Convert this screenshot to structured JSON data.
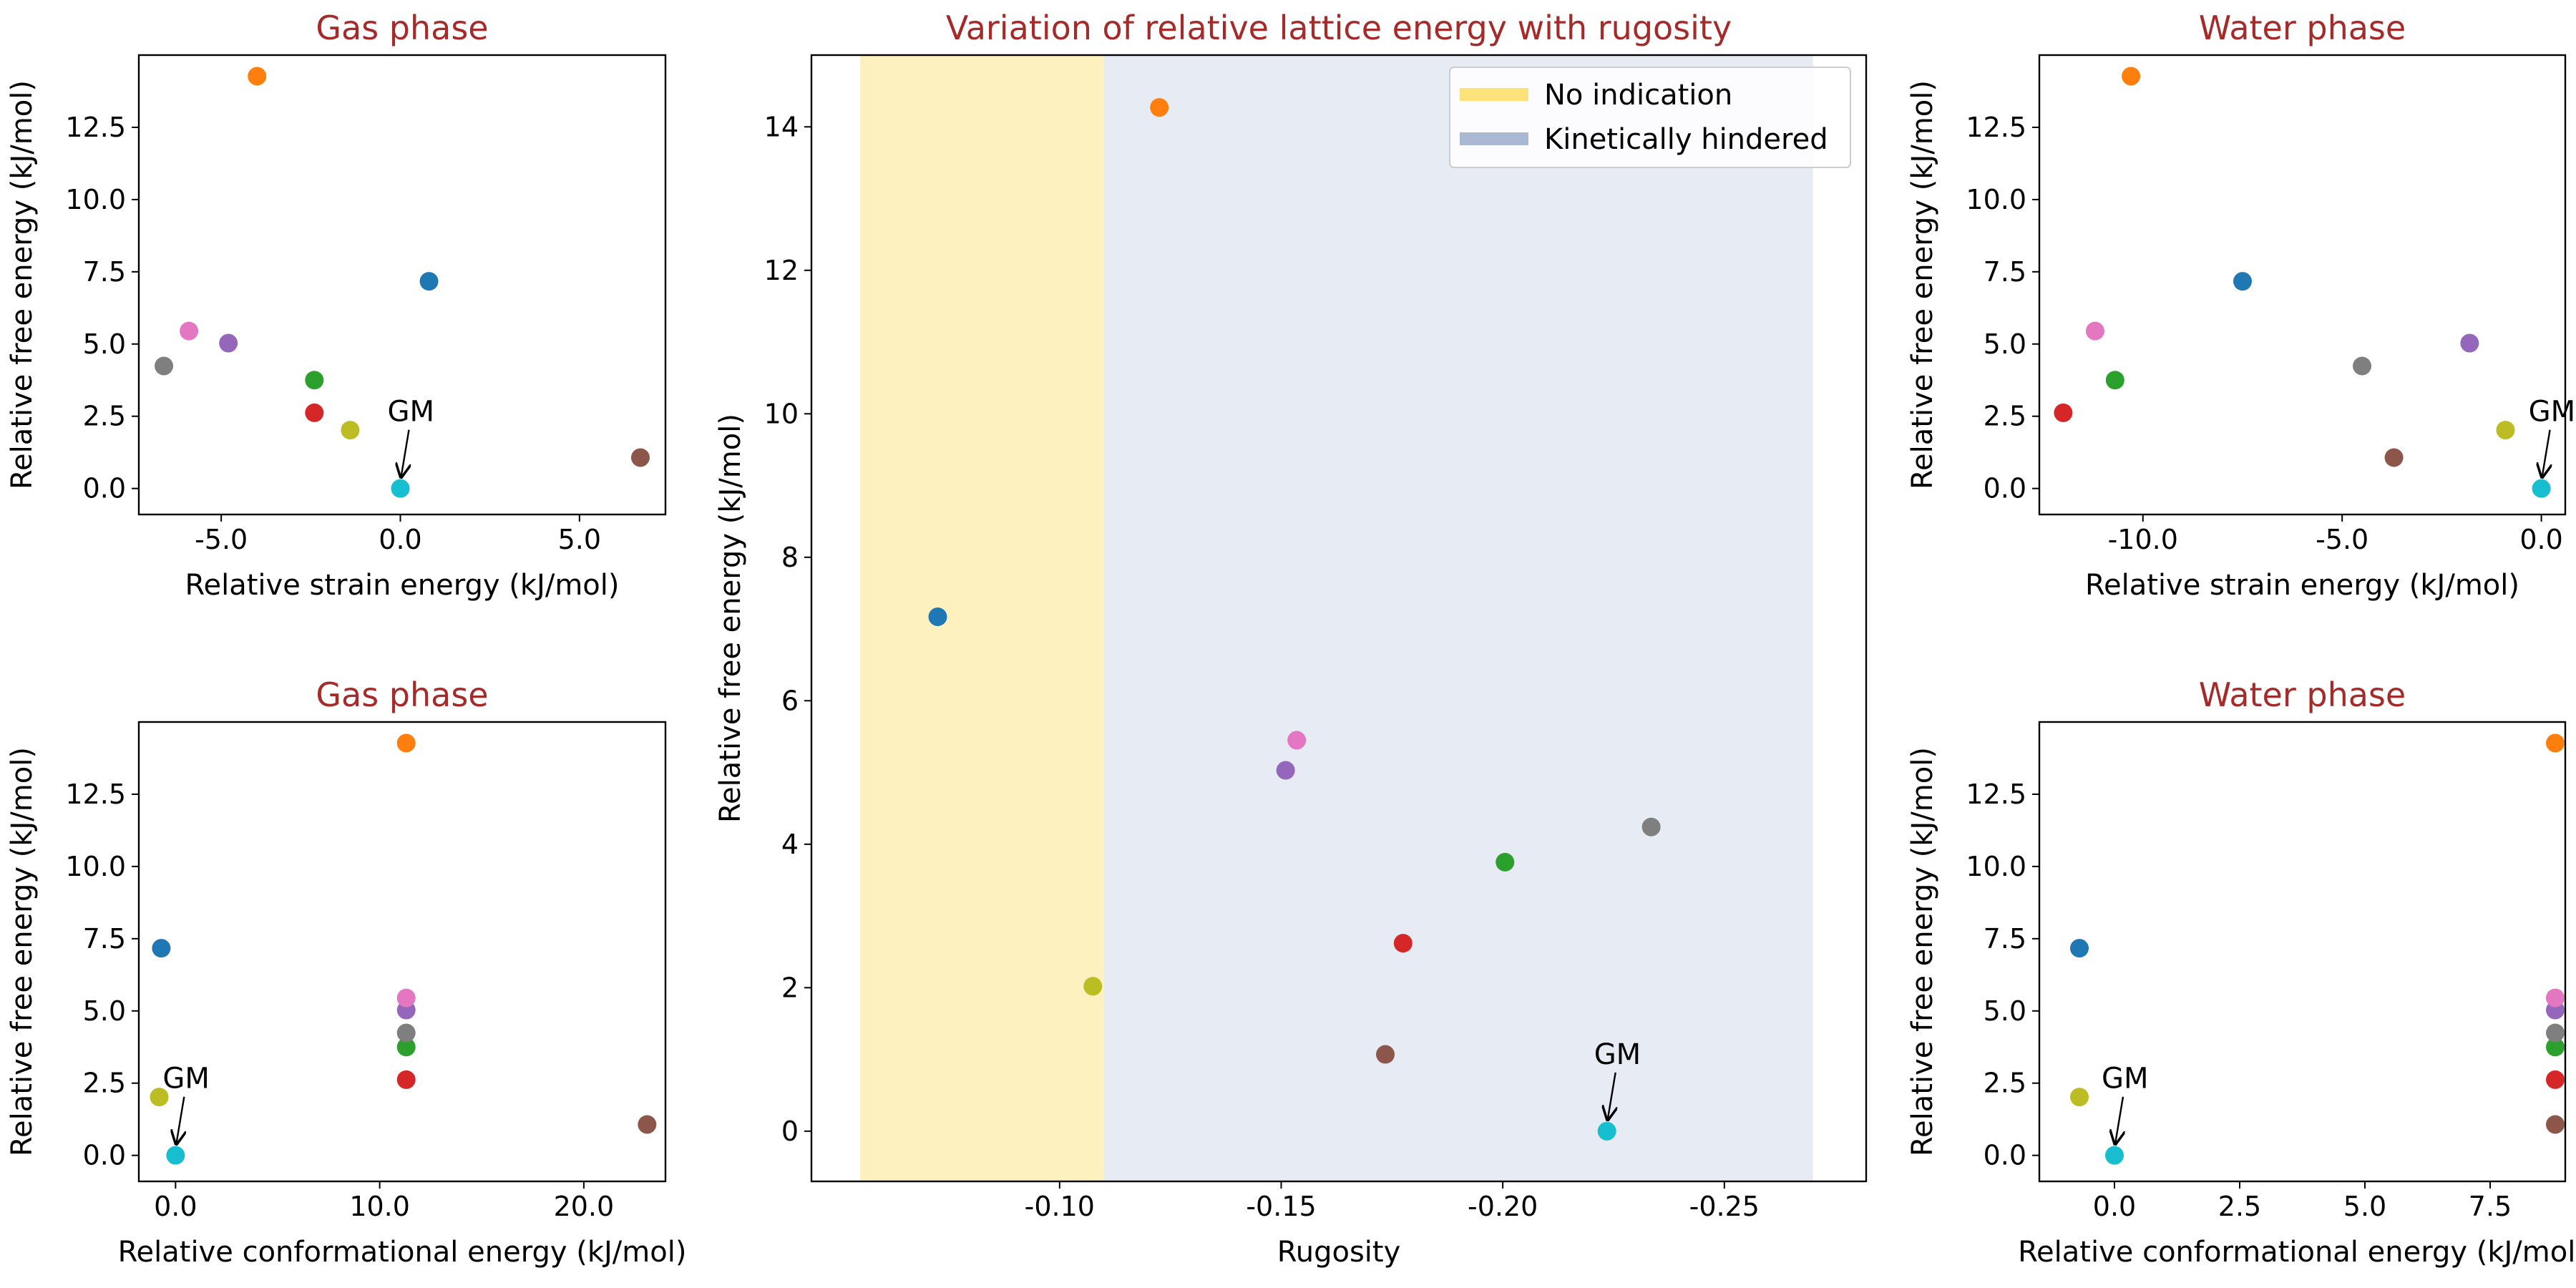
{
  "colors": {
    "title": "#a52a2a",
    "no_indication_region": "#fdf1c0",
    "kinetically_hindered_region": "#e7ebf4",
    "no_indication_legend": "#fde27a",
    "kinetically_hindered_legend": "#a9b8d3"
  },
  "chart_data": [
    {
      "id": "gas-strain",
      "type": "scatter",
      "title": "Gas phase",
      "xlabel": "Relative strain energy (kJ/mol)",
      "ylabel": "Relative free energy (kJ/mol)",
      "xlim": [
        -7.3,
        7.4
      ],
      "ylim": [
        -0.9,
        15.0
      ],
      "xticks": [
        -5,
        0,
        5
      ],
      "xtick_labels": [
        "-5.0",
        "0.0",
        "5.0"
      ],
      "yticks": [
        0,
        2.5,
        5,
        7.5,
        10,
        12.5
      ],
      "ytick_labels": [
        "0.0",
        "2.5",
        "5.0",
        "7.5",
        "10.0",
        "12.5"
      ],
      "points": [
        {
          "x": 0.8,
          "y": 7.17,
          "color": "#1f77b4"
        },
        {
          "x": -4.0,
          "y": 14.27,
          "color": "#ff7f0e"
        },
        {
          "x": -2.4,
          "y": 3.75,
          "color": "#2ca02c"
        },
        {
          "x": -2.4,
          "y": 2.62,
          "color": "#d62728"
        },
        {
          "x": -4.8,
          "y": 5.03,
          "color": "#9467bd"
        },
        {
          "x": 6.7,
          "y": 1.07,
          "color": "#8c564b"
        },
        {
          "x": -5.9,
          "y": 5.45,
          "color": "#e377c2"
        },
        {
          "x": -6.6,
          "y": 4.24,
          "color": "#7f7f7f"
        },
        {
          "x": -1.4,
          "y": 2.02,
          "color": "#bcbd22"
        },
        {
          "x": 0.0,
          "y": 0.0,
          "color": "#17becf"
        }
      ],
      "annotation": {
        "text": "GM",
        "x": 0.0,
        "y": 0.0
      }
    },
    {
      "id": "gas-conformational",
      "type": "scatter",
      "title": "Gas phase",
      "xlabel": "Relative conformational energy (kJ/mol)",
      "ylabel": "Relative free energy (kJ/mol)",
      "xlim": [
        -1.8,
        24.0
      ],
      "ylim": [
        -0.9,
        15.0
      ],
      "xticks": [
        0,
        10,
        20
      ],
      "xtick_labels": [
        "0.0",
        "10.0",
        "20.0"
      ],
      "yticks": [
        0,
        2.5,
        5,
        7.5,
        10,
        12.5
      ],
      "ytick_labels": [
        "0.0",
        "2.5",
        "5.0",
        "7.5",
        "10.0",
        "12.5"
      ],
      "points": [
        {
          "x": -0.7,
          "y": 7.17,
          "color": "#1f77b4"
        },
        {
          "x": 11.3,
          "y": 14.27,
          "color": "#ff7f0e"
        },
        {
          "x": 11.3,
          "y": 3.75,
          "color": "#2ca02c"
        },
        {
          "x": 11.3,
          "y": 2.62,
          "color": "#d62728"
        },
        {
          "x": 11.3,
          "y": 5.03,
          "color": "#9467bd"
        },
        {
          "x": 23.1,
          "y": 1.07,
          "color": "#8c564b"
        },
        {
          "x": 11.3,
          "y": 5.45,
          "color": "#e377c2"
        },
        {
          "x": 11.3,
          "y": 4.24,
          "color": "#7f7f7f"
        },
        {
          "x": -0.8,
          "y": 2.02,
          "color": "#bcbd22"
        },
        {
          "x": 0.0,
          "y": 0.0,
          "color": "#17becf"
        }
      ],
      "annotation": {
        "text": "GM",
        "x": 0.0,
        "y": 0.0
      }
    },
    {
      "id": "rugosity",
      "type": "scatter",
      "title": "Variation of relative lattice energy with rugosity",
      "xlabel": "Rugosity",
      "ylabel": "Relative free energy (kJ/mol)",
      "xlim": [
        -0.044,
        -0.282
      ],
      "ylim": [
        -0.7,
        15.0
      ],
      "xticks": [
        -0.1,
        -0.15,
        -0.2,
        -0.25
      ],
      "xtick_labels": [
        "-0.10",
        "-0.15",
        "-0.20",
        "-0.25"
      ],
      "yticks": [
        0,
        2,
        4,
        6,
        8,
        10,
        12,
        14
      ],
      "ytick_labels": [
        "0",
        "2",
        "4",
        "6",
        "8",
        "10",
        "12",
        "14"
      ],
      "regions": [
        {
          "label": "No indication",
          "from": -0.055,
          "to": -0.11,
          "color": "#fdf1c0"
        },
        {
          "label": "Kinetically hindered",
          "from": -0.11,
          "to": -0.27,
          "color": "#e7ebf4"
        }
      ],
      "legend": {
        "placement": "upper right",
        "entries": [
          {
            "label": "No indication",
            "color": "#fde27a"
          },
          {
            "label": "Kinetically hindered",
            "color": "#a9b8d3"
          }
        ]
      },
      "points": [
        {
          "x": -0.0725,
          "y": 7.17,
          "color": "#1f77b4"
        },
        {
          "x": -0.1225,
          "y": 14.27,
          "color": "#ff7f0e"
        },
        {
          "x": -0.2005,
          "y": 3.75,
          "color": "#2ca02c"
        },
        {
          "x": -0.1775,
          "y": 2.62,
          "color": "#d62728"
        },
        {
          "x": -0.151,
          "y": 5.03,
          "color": "#9467bd"
        },
        {
          "x": -0.1735,
          "y": 1.07,
          "color": "#8c564b"
        },
        {
          "x": -0.1535,
          "y": 5.45,
          "color": "#e377c2"
        },
        {
          "x": -0.2335,
          "y": 4.24,
          "color": "#7f7f7f"
        },
        {
          "x": -0.1075,
          "y": 2.02,
          "color": "#bcbd22"
        },
        {
          "x": -0.2235,
          "y": 0.0,
          "color": "#17becf"
        }
      ],
      "annotation": {
        "text": "GM",
        "x": -0.2235,
        "y": 0.0
      }
    },
    {
      "id": "water-strain",
      "type": "scatter",
      "title": "Water phase",
      "xlabel": "Relative strain energy (kJ/mol)",
      "ylabel": "Relative free energy (kJ/mol)",
      "xlim": [
        -12.6,
        0.6
      ],
      "ylim": [
        -0.9,
        15.0
      ],
      "xticks": [
        -10,
        -5,
        0
      ],
      "xtick_labels": [
        "-10.0",
        "-5.0",
        "0.0"
      ],
      "yticks": [
        0,
        2.5,
        5,
        7.5,
        10,
        12.5
      ],
      "ytick_labels": [
        "0.0",
        "2.5",
        "5.0",
        "7.5",
        "10.0",
        "12.5"
      ],
      "points": [
        {
          "x": -7.5,
          "y": 7.17,
          "color": "#1f77b4"
        },
        {
          "x": -10.3,
          "y": 14.27,
          "color": "#ff7f0e"
        },
        {
          "x": -10.7,
          "y": 3.75,
          "color": "#2ca02c"
        },
        {
          "x": -12.0,
          "y": 2.62,
          "color": "#d62728"
        },
        {
          "x": -1.8,
          "y": 5.03,
          "color": "#9467bd"
        },
        {
          "x": -3.7,
          "y": 1.07,
          "color": "#8c564b"
        },
        {
          "x": -11.2,
          "y": 5.45,
          "color": "#e377c2"
        },
        {
          "x": -4.5,
          "y": 4.24,
          "color": "#7f7f7f"
        },
        {
          "x": -0.9,
          "y": 2.02,
          "color": "#bcbd22"
        },
        {
          "x": 0.0,
          "y": 0.0,
          "color": "#17becf"
        }
      ],
      "annotation": {
        "text": "GM",
        "x": 0.0,
        "y": 0.0
      }
    },
    {
      "id": "water-conformational",
      "type": "scatter",
      "title": "Water phase",
      "xlabel": "Relative conformational energy (kJ/mol)",
      "ylabel": "Relative free energy (kJ/mol)",
      "xlim": [
        -1.5,
        9.0
      ],
      "ylim": [
        -0.9,
        15.0
      ],
      "xticks": [
        0,
        2.5,
        5,
        7.5
      ],
      "xtick_labels": [
        "0.0",
        "2.5",
        "5.0",
        "7.5"
      ],
      "yticks": [
        0,
        2.5,
        5,
        7.5,
        10,
        12.5
      ],
      "ytick_labels": [
        "0.0",
        "2.5",
        "5.0",
        "7.5",
        "10.0",
        "12.5"
      ],
      "points": [
        {
          "x": -0.7,
          "y": 7.17,
          "color": "#1f77b4"
        },
        {
          "x": 8.8,
          "y": 14.27,
          "color": "#ff7f0e"
        },
        {
          "x": 8.8,
          "y": 3.75,
          "color": "#2ca02c"
        },
        {
          "x": 8.8,
          "y": 2.62,
          "color": "#d62728"
        },
        {
          "x": 8.8,
          "y": 5.03,
          "color": "#9467bd"
        },
        {
          "x": 8.8,
          "y": 1.07,
          "color": "#8c564b"
        },
        {
          "x": 8.8,
          "y": 5.45,
          "color": "#e377c2"
        },
        {
          "x": 8.8,
          "y": 4.24,
          "color": "#7f7f7f"
        },
        {
          "x": -0.7,
          "y": 2.02,
          "color": "#bcbd22"
        },
        {
          "x": 0.0,
          "y": 0.0,
          "color": "#17becf"
        }
      ],
      "annotation": {
        "text": "GM",
        "x": 0.0,
        "y": 0.0
      }
    }
  ]
}
